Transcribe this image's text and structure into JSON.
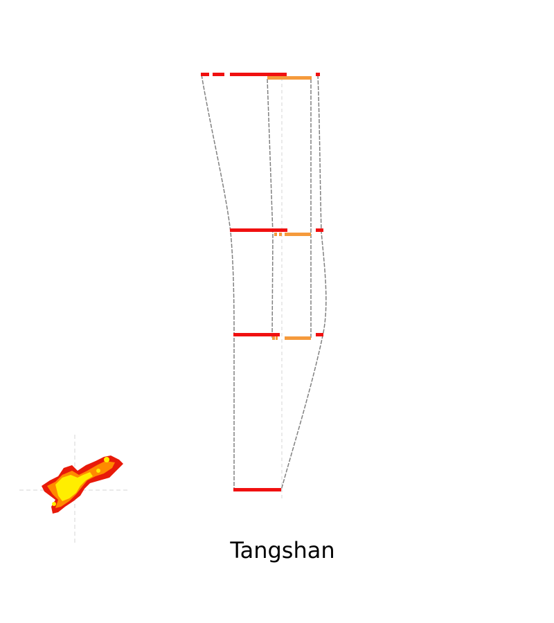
{
  "title": "Tangshan",
  "colors": {
    "primary_bar": "#f01010",
    "secondary_bar": "#f59a3c",
    "outline": "#808080",
    "guide": "#dddddd",
    "blob_outer": "#e81a0a",
    "blob_mid": "#ff8a00",
    "blob_inner": "#ffee00"
  }
}
